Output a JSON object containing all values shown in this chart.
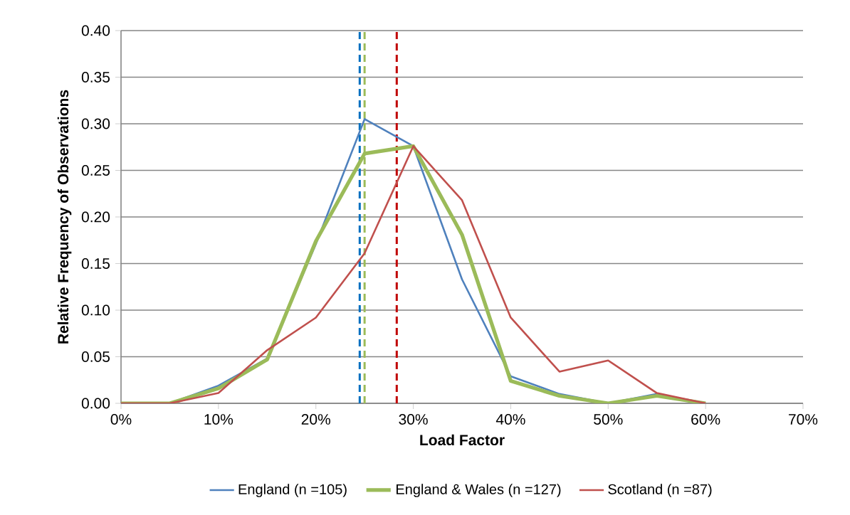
{
  "chart_data": {
    "type": "line",
    "xlabel": "Load Factor",
    "ylabel": "Relative Frequency of Observations",
    "x": [
      0,
      5,
      10,
      15,
      20,
      25,
      30,
      35,
      40,
      45,
      50,
      55,
      60
    ],
    "series": [
      {
        "name": "England (n =105)",
        "color": "#4f81bd",
        "values": [
          0,
          0,
          0.019,
          0.048,
          0.171,
          0.305,
          0.276,
          0.133,
          0.029,
          0.01,
          0,
          0.01,
          0
        ]
      },
      {
        "name": "England & Wales (n =127)",
        "color": "#9bbb59",
        "values": [
          0,
          0,
          0.016,
          0.047,
          0.174,
          0.268,
          0.276,
          0.181,
          0.024,
          0.008,
          0,
          0.008,
          0
        ]
      },
      {
        "name": "Scotland (n =87)",
        "color": "#c0504d",
        "values": [
          0,
          0,
          0.011,
          0.057,
          0.092,
          0.161,
          0.276,
          0.218,
          0.092,
          0.034,
          0.046,
          0.011,
          0
        ]
      }
    ],
    "xlim": [
      0,
      70
    ],
    "xticks": [
      {
        "value": 0,
        "label": "0%"
      },
      {
        "value": 10,
        "label": "10%"
      },
      {
        "value": 20,
        "label": "20%"
      },
      {
        "value": 30,
        "label": "30%"
      },
      {
        "value": 40,
        "label": "40%"
      },
      {
        "value": 50,
        "label": "50%"
      },
      {
        "value": 60,
        "label": "60%"
      },
      {
        "value": 70,
        "label": "70%"
      }
    ],
    "ylim": [
      0,
      0.4
    ],
    "yticks": [
      {
        "value": 0,
        "label": "0.00"
      },
      {
        "value": 0.05,
        "label": "0.05"
      },
      {
        "value": 0.1,
        "label": "0.10"
      },
      {
        "value": 0.15,
        "label": "0.15"
      },
      {
        "value": 0.2,
        "label": "0.20"
      },
      {
        "value": 0.25,
        "label": "0.25"
      },
      {
        "value": 0.3,
        "label": "0.30"
      },
      {
        "value": 0.35,
        "label": "0.35"
      },
      {
        "value": 0.4,
        "label": "0.40"
      }
    ],
    "ref_lines": [
      {
        "axis": "x",
        "value": 24.5,
        "color": "#0070c0",
        "line_style": "dashed"
      },
      {
        "axis": "x",
        "value": 25.0,
        "color": "#9bbb59",
        "line_style": "dashed"
      },
      {
        "axis": "x",
        "value": 28.3,
        "color": "#c00000",
        "line_style": "dashed"
      }
    ],
    "grid": "y",
    "legend": "bottom",
    "marker": "none",
    "line_style": "solid"
  }
}
